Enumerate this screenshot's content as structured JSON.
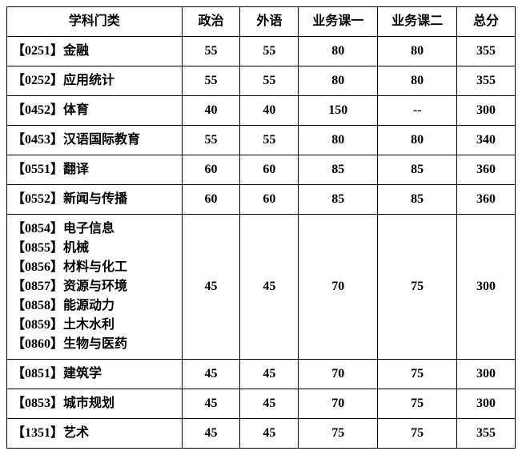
{
  "table": {
    "columns": [
      "学科门类",
      "政治",
      "外语",
      "业务课一",
      "业务课二",
      "总分"
    ],
    "rows": [
      {
        "subject": "【0251】金融",
        "politics": "55",
        "foreign": "55",
        "course1": "80",
        "course2": "80",
        "total": "355"
      },
      {
        "subject": "【0252】应用统计",
        "politics": "55",
        "foreign": "55",
        "course1": "80",
        "course2": "80",
        "total": "355"
      },
      {
        "subject": "【0452】体育",
        "politics": "40",
        "foreign": "40",
        "course1": "150",
        "course2": "--",
        "total": "300"
      },
      {
        "subject": "【0453】汉语国际教育",
        "politics": "55",
        "foreign": "55",
        "course1": "80",
        "course2": "80",
        "total": "340"
      },
      {
        "subject": "【0551】翻译",
        "politics": "60",
        "foreign": "60",
        "course1": "85",
        "course2": "85",
        "total": "360"
      },
      {
        "subject": "【0552】新闻与传播",
        "politics": "60",
        "foreign": "60",
        "course1": "85",
        "course2": "85",
        "total": "360"
      },
      {
        "subject": "【0854】电子信息\n【0855】机械\n【0856】材料与化工\n【0857】资源与环境\n【0858】能源动力\n【0859】土木水利\n【0860】生物与医药",
        "politics": "45",
        "foreign": "45",
        "course1": "70",
        "course2": "75",
        "total": "300"
      },
      {
        "subject": "【0851】建筑学",
        "politics": "45",
        "foreign": "45",
        "course1": "70",
        "course2": "75",
        "total": "300"
      },
      {
        "subject": "【0853】城市规划",
        "politics": "45",
        "foreign": "45",
        "course1": "70",
        "course2": "75",
        "total": "300"
      },
      {
        "subject": "【1351】艺术",
        "politics": "45",
        "foreign": "45",
        "course1": "75",
        "course2": "75",
        "total": "355"
      }
    ],
    "styling": {
      "border_color": "#000000",
      "border_width": 1.5,
      "background_color": "#ffffff",
      "text_color": "#000000",
      "font_family": "SimSun",
      "font_size": 16,
      "font_weight": "bold",
      "header_align": "center",
      "subject_align": "left",
      "score_align": "center",
      "column_widths": {
        "subject": 210,
        "politics": 70,
        "foreign": 70,
        "course1": 95,
        "course2": 95,
        "total": 70
      }
    }
  }
}
